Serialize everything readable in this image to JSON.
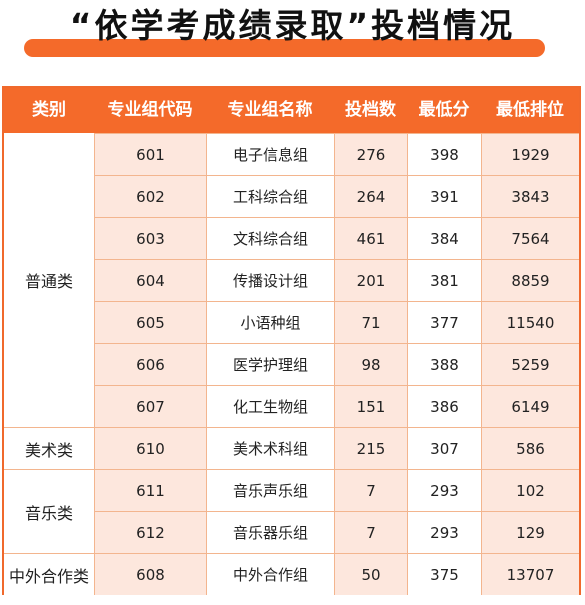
{
  "title": "“依学考成绩录取”投档情况",
  "colors": {
    "accent": "#f46a2a",
    "row_tint": "#fde7dd",
    "grid": "#f3b58e"
  },
  "table": {
    "headers": [
      "类别",
      "专业组代码",
      "专业组名称",
      "投档数",
      "最低分",
      "最低排位"
    ],
    "categories": [
      {
        "label": "普通类",
        "rows": 7
      },
      {
        "label": "美术类",
        "rows": 1
      },
      {
        "label": "音乐类",
        "rows": 2
      },
      {
        "label": "中外合作类",
        "rows": 1
      }
    ],
    "rows": [
      {
        "code": "601",
        "name": "电子信息组",
        "count": "276",
        "min_score": "398",
        "min_rank": "1929"
      },
      {
        "code": "602",
        "name": "工科综合组",
        "count": "264",
        "min_score": "391",
        "min_rank": "3843"
      },
      {
        "code": "603",
        "name": "文科综合组",
        "count": "461",
        "min_score": "384",
        "min_rank": "7564"
      },
      {
        "code": "604",
        "name": "传播设计组",
        "count": "201",
        "min_score": "381",
        "min_rank": "8859"
      },
      {
        "code": "605",
        "name": "小语种组",
        "count": "71",
        "min_score": "377",
        "min_rank": "11540"
      },
      {
        "code": "606",
        "name": "医学护理组",
        "count": "98",
        "min_score": "388",
        "min_rank": "5259"
      },
      {
        "code": "607",
        "name": "化工生物组",
        "count": "151",
        "min_score": "386",
        "min_rank": "6149"
      },
      {
        "code": "610",
        "name": "美术术科组",
        "count": "215",
        "min_score": "307",
        "min_rank": "586"
      },
      {
        "code": "611",
        "name": "音乐声乐组",
        "count": "7",
        "min_score": "293",
        "min_rank": "102"
      },
      {
        "code": "612",
        "name": "音乐器乐组",
        "count": "7",
        "min_score": "293",
        "min_rank": "129"
      },
      {
        "code": "608",
        "name": "中外合作组",
        "count": "50",
        "min_score": "375",
        "min_rank": "13707"
      }
    ]
  }
}
